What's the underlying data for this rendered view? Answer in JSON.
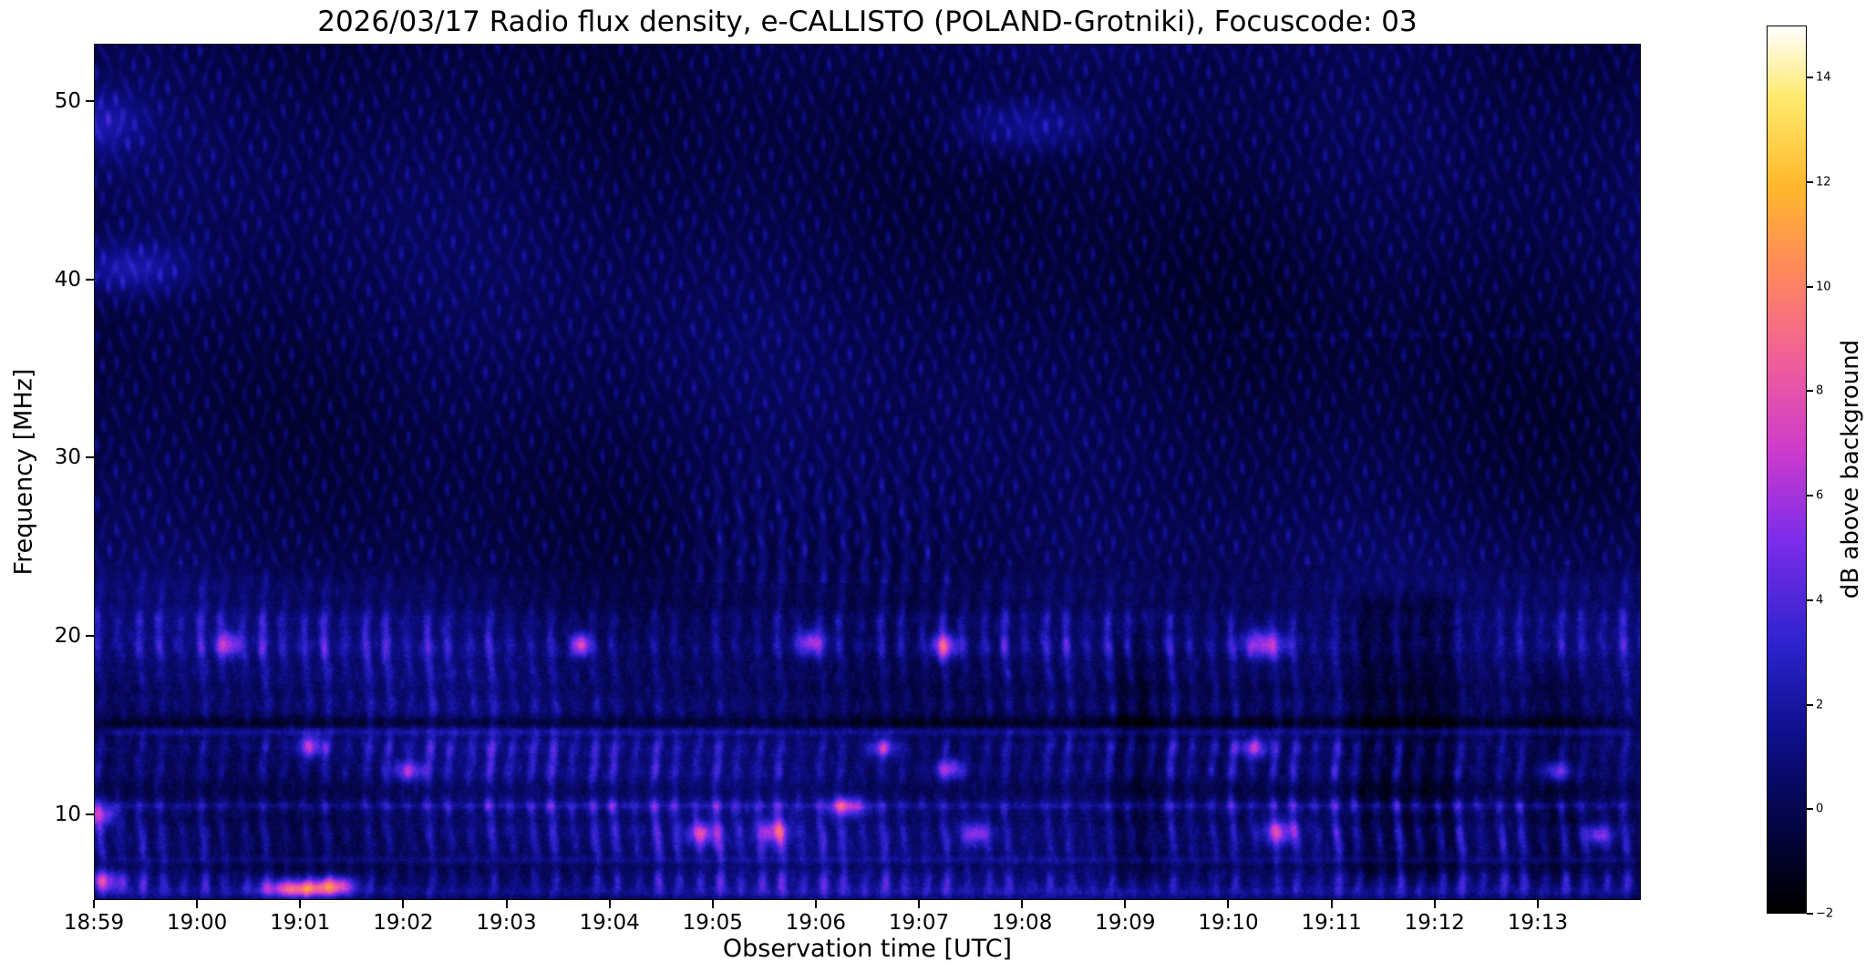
{
  "chart": {
    "title": "2026/03/17  Radio flux density, e-CALLISTO (POLAND-Grotniki), Focuscode: 03",
    "xlabel": "Observation time [UTC]",
    "ylabel": "Frequency [MHz]",
    "colorbar": {
      "label": "dB above background",
      "tick_values": [
        14,
        12,
        10,
        8,
        6,
        4,
        2,
        0,
        -2
      ],
      "tick_labels": [
        "14",
        "12",
        "10",
        "8",
        "6",
        "4",
        "2",
        "0",
        "−2"
      ]
    }
  },
  "chart_data": {
    "type": "heatmap",
    "subtype": "radio-spectrogram",
    "title": "2026/03/17  Radio flux density, e-CALLISTO (POLAND-Grotniki), Focuscode: 03",
    "date": "2026/03/17",
    "station": "POLAND-Grotniki",
    "focuscode": "03",
    "xlabel": "Observation time [UTC]",
    "ylabel": "Frequency [MHz]",
    "x_ticks": [
      "18:59",
      "19:00",
      "19:01",
      "19:02",
      "19:03",
      "19:04",
      "19:05",
      "19:06",
      "19:07",
      "19:08",
      "19:09",
      "19:10",
      "19:11",
      "19:12",
      "19:13"
    ],
    "y_ticks": [
      50,
      40,
      30,
      20,
      10
    ],
    "time_start": "18:59",
    "time_end": "19:14",
    "x_range_minutes": [
      0,
      15
    ],
    "freq_range_mhz": [
      5.2,
      53.2
    ],
    "value_range_db": [
      -2,
      15
    ],
    "colorbar_label": "dB above background",
    "legend_position": "right-colorbar",
    "grid": false,
    "description": "Dark blue spectrogram with diagonal moire interference ripples above ~25 MHz; strong time-modulated vertical striping and bright horizontal emission bands below ~24 MHz (around 6, 9, 10.5, 12.5, 14, 19.5, 21 MHz); occasional pink/orange bursts near 6 MHz at 19:01 and ~19.5 MHz at 19:03.7; darker quiet patches near 19:08.8, 19:11-19:12.3 and 19:12.9 at low frequencies; continuous narrow bright line near 14.6 MHz; dashed bright line near 37 MHz after 19:10.",
    "colormap_stops": [
      [
        0.0,
        0,
        0,
        0
      ],
      [
        0.1,
        5,
        5,
        70
      ],
      [
        0.2,
        15,
        15,
        140
      ],
      [
        0.3,
        45,
        35,
        205
      ],
      [
        0.42,
        125,
        45,
        235
      ],
      [
        0.52,
        205,
        60,
        205
      ],
      [
        0.62,
        240,
        95,
        155
      ],
      [
        0.72,
        255,
        135,
        95
      ],
      [
        0.82,
        255,
        185,
        45
      ],
      [
        0.92,
        255,
        235,
        110
      ],
      [
        1.0,
        255,
        255,
        255
      ]
    ],
    "texture": {
      "base": -0.35,
      "glow_amp": 0.35,
      "ripple_amp": 1.15,
      "a1": 40,
      "b1": 3.0,
      "a2": 7.5,
      "b2": 0.9,
      "a3": 47,
      "b3": 2.7,
      "a4": 5.2,
      "b4": 0.65,
      "seam_t": 8.63,
      "low_top": 26,
      "low_fade": 5,
      "stripe1": 31.4,
      "stripe2": 11.4,
      "noise_low": 1.0,
      "noise_high": 0.35
    },
    "bands": [
      [
        6.2,
        2.6,
        0.5
      ],
      [
        8.0,
        1.8,
        0.4
      ],
      [
        9.0,
        2.4,
        0.5
      ],
      [
        10.4,
        2.6,
        0.4
      ],
      [
        12.4,
        2.2,
        0.5
      ],
      [
        13.7,
        2.4,
        0.45
      ],
      [
        16.1,
        1.3,
        0.5
      ],
      [
        17.8,
        1.2,
        0.5
      ],
      [
        19.4,
        2.6,
        0.6
      ],
      [
        20.9,
        1.8,
        0.5
      ],
      [
        22.8,
        1.2,
        0.6
      ]
    ],
    "h_lines": [
      [
        14.6,
        0.16,
        1.6,
        0,
        15,
        0
      ],
      [
        15.15,
        0.22,
        -1.0,
        0,
        15,
        0
      ],
      [
        10.45,
        0.12,
        1.0,
        0,
        15,
        0
      ],
      [
        7.4,
        0.15,
        1.1,
        0,
        15,
        0
      ],
      [
        5.6,
        0.25,
        1.3,
        0,
        15,
        0
      ],
      [
        36.9,
        0.14,
        1.5,
        10.8,
        15,
        26
      ],
      [
        36.9,
        0.12,
        0.5,
        0,
        10.8,
        26
      ]
    ],
    "spots": [
      [
        0.07,
        9.9,
        5.0,
        0.1,
        0.45
      ],
      [
        0.12,
        6.2,
        4.5,
        0.12,
        0.4
      ],
      [
        1.3,
        19.5,
        5.0,
        0.08,
        0.5
      ],
      [
        2.0,
        5.8,
        8.5,
        0.25,
        0.35
      ],
      [
        2.35,
        6.0,
        5.5,
        0.12,
        0.35
      ],
      [
        2.1,
        13.8,
        4.8,
        0.1,
        0.45
      ],
      [
        3.05,
        12.4,
        4.6,
        0.1,
        0.4
      ],
      [
        4.72,
        19.5,
        7.5,
        0.06,
        0.45
      ],
      [
        5.9,
        8.9,
        5.2,
        0.1,
        0.45
      ],
      [
        6.6,
        9.0,
        5.4,
        0.1,
        0.5
      ],
      [
        6.95,
        19.6,
        5.5,
        0.1,
        0.5
      ],
      [
        7.3,
        10.4,
        5.5,
        0.12,
        0.4
      ],
      [
        7.65,
        13.7,
        4.8,
        0.1,
        0.4
      ],
      [
        8.25,
        19.4,
        5.6,
        0.1,
        0.5
      ],
      [
        8.3,
        12.5,
        5.0,
        0.1,
        0.4
      ],
      [
        8.55,
        8.9,
        5.0,
        0.1,
        0.45
      ],
      [
        11.25,
        13.7,
        5.0,
        0.1,
        0.4
      ],
      [
        11.35,
        19.5,
        5.6,
        0.15,
        0.55
      ],
      [
        11.5,
        9.0,
        5.2,
        0.12,
        0.5
      ],
      [
        14.6,
        8.8,
        4.6,
        0.1,
        0.4
      ],
      [
        14.2,
        12.4,
        4.4,
        0.1,
        0.4
      ],
      [
        0.05,
        48.8,
        2.2,
        0.3,
        1.2
      ],
      [
        0.35,
        40.6,
        2.4,
        0.4,
        1.0
      ],
      [
        9.05,
        48.6,
        1.9,
        0.45,
        1.0
      ]
    ],
    "patches": [
      [
        12.05,
        13.35,
        5.2,
        23.0,
        -1.15
      ],
      [
        9.75,
        10.45,
        5.2,
        21.0,
        -0.85
      ],
      [
        13.85,
        14.55,
        5.2,
        19.0,
        -0.6
      ],
      [
        8.63,
        15.0,
        26.0,
        53.2,
        -0.2
      ]
    ]
  }
}
